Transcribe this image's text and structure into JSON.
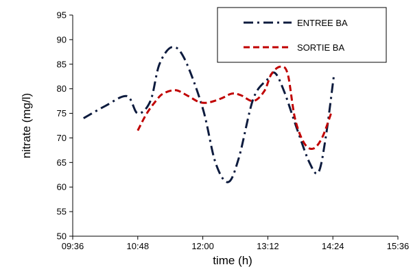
{
  "chart_data": {
    "type": "line",
    "title": "",
    "xlabel": "time (h)",
    "ylabel": "nitrate (mg/l)",
    "xlim": [
      "09:36",
      "15:36"
    ],
    "ylim": [
      50,
      95
    ],
    "x_ticks": [
      "09:36",
      "10:48",
      "12:00",
      "13:12",
      "14:24",
      "15:36"
    ],
    "y_ticks": [
      50,
      55,
      60,
      65,
      70,
      75,
      80,
      85,
      90,
      95
    ],
    "grid": false,
    "legend_position": "top-right",
    "series": [
      {
        "name": "ENTREE BA",
        "color": "#0d1b3e",
        "dash": "dash-dot",
        "x": [
          "09:48",
          "10:12",
          "10:36",
          "10:48",
          "11:02",
          "11:12",
          "11:26",
          "11:40",
          "12:00",
          "12:14",
          "12:28",
          "12:40",
          "12:56",
          "13:12",
          "13:20",
          "13:30",
          "13:44",
          "13:58",
          "14:08",
          "14:16",
          "14:25"
        ],
        "y": [
          74,
          76.5,
          78.5,
          75,
          77.5,
          85,
          88.5,
          86,
          76,
          65,
          61,
          66,
          78,
          82,
          83.2,
          79.5,
          72,
          65,
          63,
          70,
          82.5
        ]
      },
      {
        "name": "SORTIE BA",
        "color": "#c00000",
        "dash": "dash",
        "x": [
          "10:48",
          "10:58",
          "11:08",
          "11:16",
          "11:30",
          "11:44",
          "11:56",
          "12:06",
          "12:20",
          "12:32",
          "12:42",
          "12:56",
          "13:08",
          "13:16",
          "13:26",
          "13:34",
          "13:42",
          "13:52",
          "14:02",
          "14:12",
          "14:22"
        ],
        "y": [
          71.5,
          75,
          77.5,
          79,
          79.7,
          78.5,
          77.3,
          77.2,
          78,
          79,
          78.7,
          77.5,
          79.5,
          83,
          84.5,
          83,
          74,
          69,
          67.8,
          70,
          75
        ]
      }
    ]
  }
}
